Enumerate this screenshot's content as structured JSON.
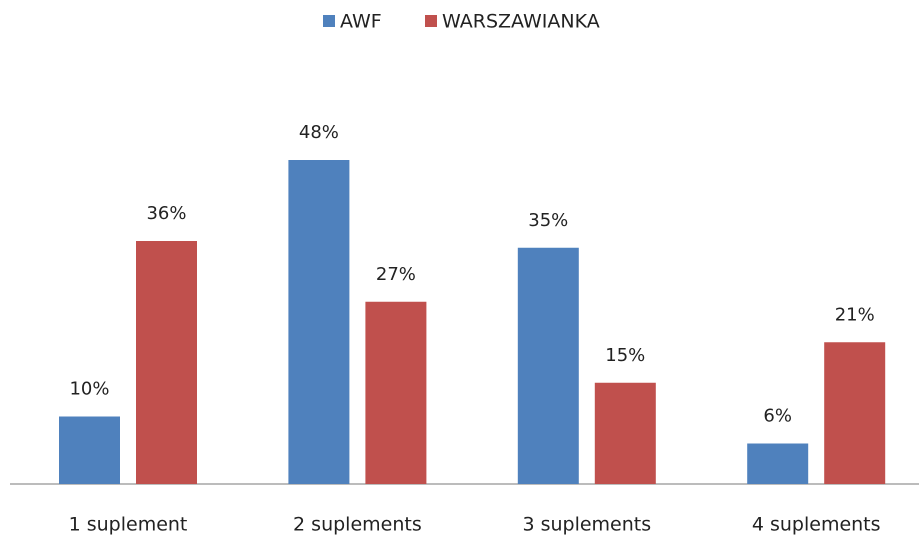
{
  "chart_data": {
    "type": "bar",
    "categories": [
      "1 suplement",
      "2 suplements",
      "3 suplements",
      "4 suplements"
    ],
    "series": [
      {
        "name": "AWF",
        "color": "#4f81bd",
        "values": [
          10,
          48,
          35,
          6
        ],
        "value_labels": [
          "10%",
          "48%",
          "35%",
          "6%"
        ]
      },
      {
        "name": "WARSZAWIANKA",
        "color": "#c0504d",
        "values": [
          36,
          27,
          15,
          21
        ],
        "value_labels": [
          "36%",
          "27%",
          "15%",
          "21%"
        ]
      }
    ],
    "legend": "top"
  }
}
